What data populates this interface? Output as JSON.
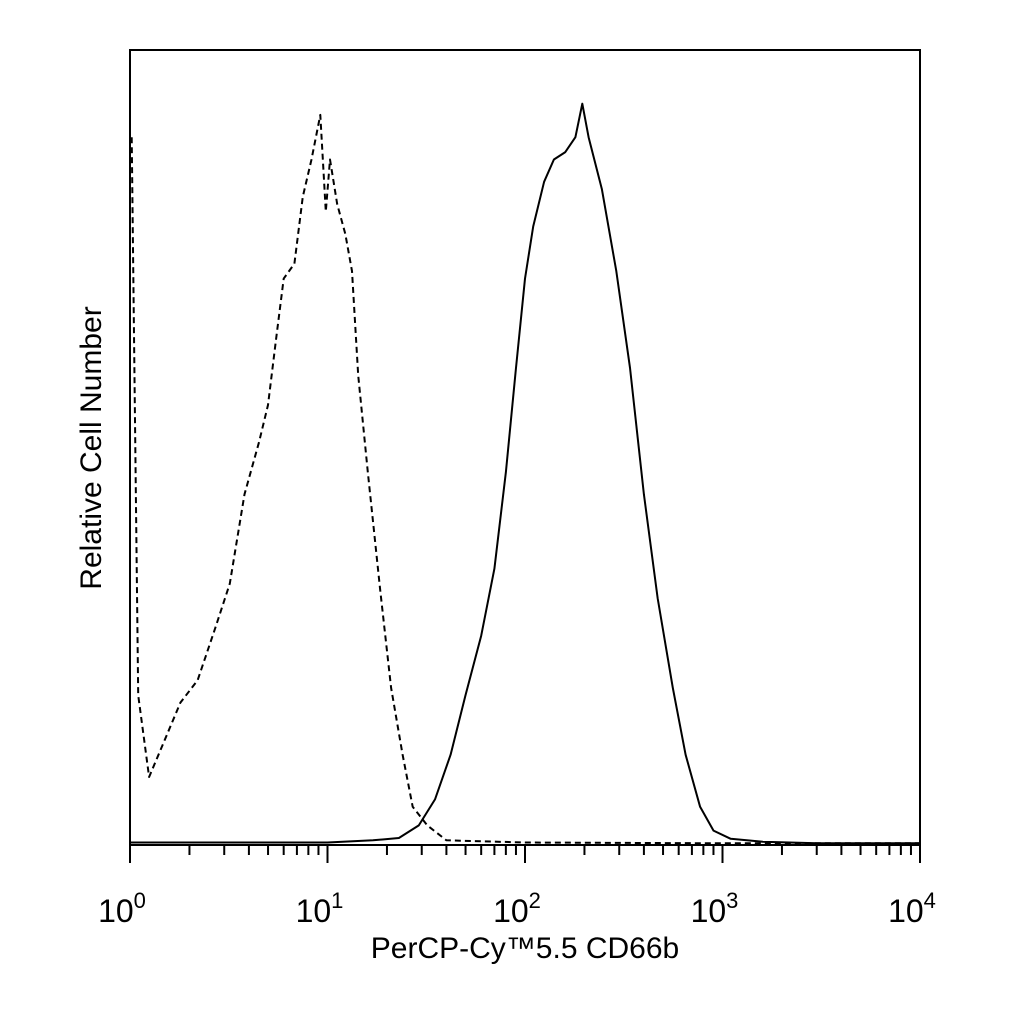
{
  "chart_data": {
    "type": "line",
    "title": "",
    "xlabel": "PerCP-Cy™5.5 CD66b",
    "ylabel": "Relative Cell Number",
    "x_scale": "log",
    "xlim": [
      1,
      10000
    ],
    "ylim": [
      0,
      100
    ],
    "grid": false,
    "legend": "none",
    "tick_labels": [
      {
        "base": "10",
        "exp": "0",
        "value": 1
      },
      {
        "base": "10",
        "exp": "1",
        "value": 10
      },
      {
        "base": "10",
        "exp": "2",
        "value": 100
      },
      {
        "base": "10",
        "exp": "3",
        "value": 1000
      },
      {
        "base": "10",
        "exp": "4",
        "value": 10000
      }
    ],
    "series": [
      {
        "style": "dashed",
        "points": [
          [
            1.02,
            95
          ],
          [
            1.1,
            20
          ],
          [
            1.25,
            9
          ],
          [
            1.5,
            14
          ],
          [
            1.8,
            19
          ],
          [
            2.2,
            22
          ],
          [
            2.7,
            29
          ],
          [
            3.2,
            35
          ],
          [
            3.8,
            47
          ],
          [
            4.5,
            54
          ],
          [
            5.0,
            59
          ],
          [
            5.5,
            68
          ],
          [
            6.0,
            76
          ],
          [
            6.8,
            78
          ],
          [
            7.5,
            87
          ],
          [
            8.3,
            92
          ],
          [
            9.2,
            98
          ],
          [
            9.8,
            85
          ],
          [
            10.3,
            92
          ],
          [
            11.2,
            86
          ],
          [
            12.3,
            82
          ],
          [
            13.3,
            77
          ],
          [
            14.3,
            63
          ],
          [
            16,
            50
          ],
          [
            18.5,
            34
          ],
          [
            21,
            21
          ],
          [
            24,
            12
          ],
          [
            27,
            5
          ],
          [
            32,
            2.5
          ],
          [
            40,
            0.5
          ],
          [
            100,
            0.2
          ],
          [
            1000,
            0.1
          ],
          [
            10000,
            0.1
          ]
        ]
      },
      {
        "style": "solid",
        "points": [
          [
            1.0,
            0.2
          ],
          [
            10,
            0.2
          ],
          [
            17,
            0.5
          ],
          [
            23,
            0.8
          ],
          [
            29,
            2.5
          ],
          [
            35,
            6
          ],
          [
            42,
            12
          ],
          [
            50,
            20
          ],
          [
            60,
            28
          ],
          [
            70,
            37
          ],
          [
            80,
            50
          ],
          [
            90,
            64
          ],
          [
            100,
            76
          ],
          [
            110,
            83
          ],
          [
            125,
            89
          ],
          [
            140,
            92
          ],
          [
            160,
            93
          ],
          [
            180,
            95
          ],
          [
            195,
            99.5
          ],
          [
            210,
            95
          ],
          [
            245,
            88
          ],
          [
            290,
            77
          ],
          [
            340,
            64
          ],
          [
            400,
            47
          ],
          [
            470,
            33
          ],
          [
            560,
            21
          ],
          [
            650,
            12
          ],
          [
            770,
            5
          ],
          [
            900,
            1.8
          ],
          [
            1100,
            0.7
          ],
          [
            1600,
            0.3
          ],
          [
            3000,
            0.1
          ],
          [
            10000,
            0.1
          ]
        ]
      }
    ]
  }
}
